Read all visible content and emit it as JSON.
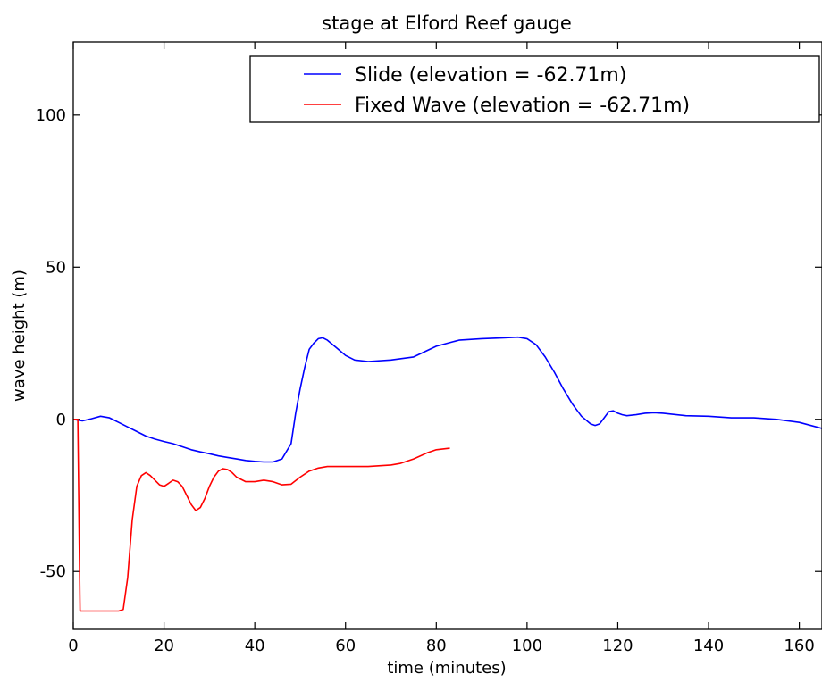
{
  "chart_data": {
    "type": "line",
    "title": "stage at Elford Reef gauge",
    "xlabel": "time (minutes)",
    "ylabel": "wave height (m)",
    "xlim": [
      0,
      165
    ],
    "ylim": [
      -69,
      124
    ],
    "xticks": [
      0,
      20,
      40,
      60,
      80,
      100,
      120,
      140,
      160
    ],
    "yticks": [
      -50,
      0,
      50,
      100
    ],
    "grid": false,
    "legend": "top-right",
    "series": [
      {
        "name": "Slide (elevation = -62.71m)",
        "color": "#0000ff",
        "x": [
          0,
          2,
          4,
          6,
          8,
          10,
          12,
          14,
          16,
          18,
          20,
          22,
          24,
          26,
          28,
          30,
          32,
          34,
          36,
          38,
          40,
          42,
          44,
          46,
          48,
          49,
          50,
          51,
          52,
          53,
          54,
          55,
          56,
          58,
          60,
          62,
          65,
          70,
          75,
          80,
          85,
          90,
          95,
          98,
          100,
          102,
          104,
          106,
          108,
          110,
          112,
          114,
          115,
          116,
          117,
          118,
          119,
          120,
          121,
          122,
          124,
          126,
          128,
          130,
          135,
          140,
          145,
          150,
          155,
          160,
          165
        ],
        "y": [
          0,
          -0.5,
          0.2,
          1,
          0.5,
          -1,
          -2.5,
          -4,
          -5.5,
          -6.5,
          -7.3,
          -8,
          -9,
          -10,
          -10.7,
          -11.3,
          -12,
          -12.5,
          -13,
          -13.5,
          -13.8,
          -14,
          -14,
          -13,
          -8,
          2,
          10,
          17,
          23,
          25,
          26.5,
          26.8,
          26,
          23.5,
          21,
          19.5,
          19,
          19.5,
          20.5,
          24,
          26,
          26.5,
          26.8,
          27,
          26.5,
          24.5,
          20.5,
          15.5,
          10,
          5,
          1,
          -1.5,
          -2,
          -1.5,
          0.5,
          2.5,
          2.8,
          2,
          1.5,
          1.2,
          1.5,
          2,
          2.2,
          2,
          1.2,
          1,
          0.5,
          0.5,
          0,
          -1,
          -3
        ]
      },
      {
        "name": "Fixed Wave (elevation = -62.71m)",
        "color": "#ff0000",
        "x": [
          0,
          1,
          1.5,
          2,
          4,
          6,
          8,
          10,
          11,
          12,
          13,
          14,
          15,
          16,
          17,
          18,
          19,
          20,
          21,
          22,
          23,
          24,
          25,
          26,
          27,
          28,
          29,
          30,
          31,
          32,
          33,
          34,
          35,
          36,
          38,
          40,
          42,
          44,
          46,
          48,
          50,
          52,
          54,
          56,
          60,
          65,
          70,
          72,
          75,
          78,
          80,
          83
        ],
        "y": [
          0,
          0,
          -63,
          -63,
          -63,
          -63,
          -63,
          -63,
          -62.5,
          -52,
          -33,
          -22,
          -18.5,
          -17.5,
          -18.5,
          -20,
          -21.5,
          -22,
          -21,
          -20,
          -20.5,
          -22,
          -25,
          -28,
          -30,
          -29,
          -26,
          -22,
          -19,
          -17,
          -16.2,
          -16.5,
          -17.5,
          -19,
          -20.5,
          -20.5,
          -20,
          -20.5,
          -21.5,
          -21.3,
          -19,
          -17,
          -16,
          -15.5,
          -15.5,
          -15.5,
          -15,
          -14.5,
          -13,
          -11,
          -10,
          -9.5
        ]
      }
    ]
  }
}
